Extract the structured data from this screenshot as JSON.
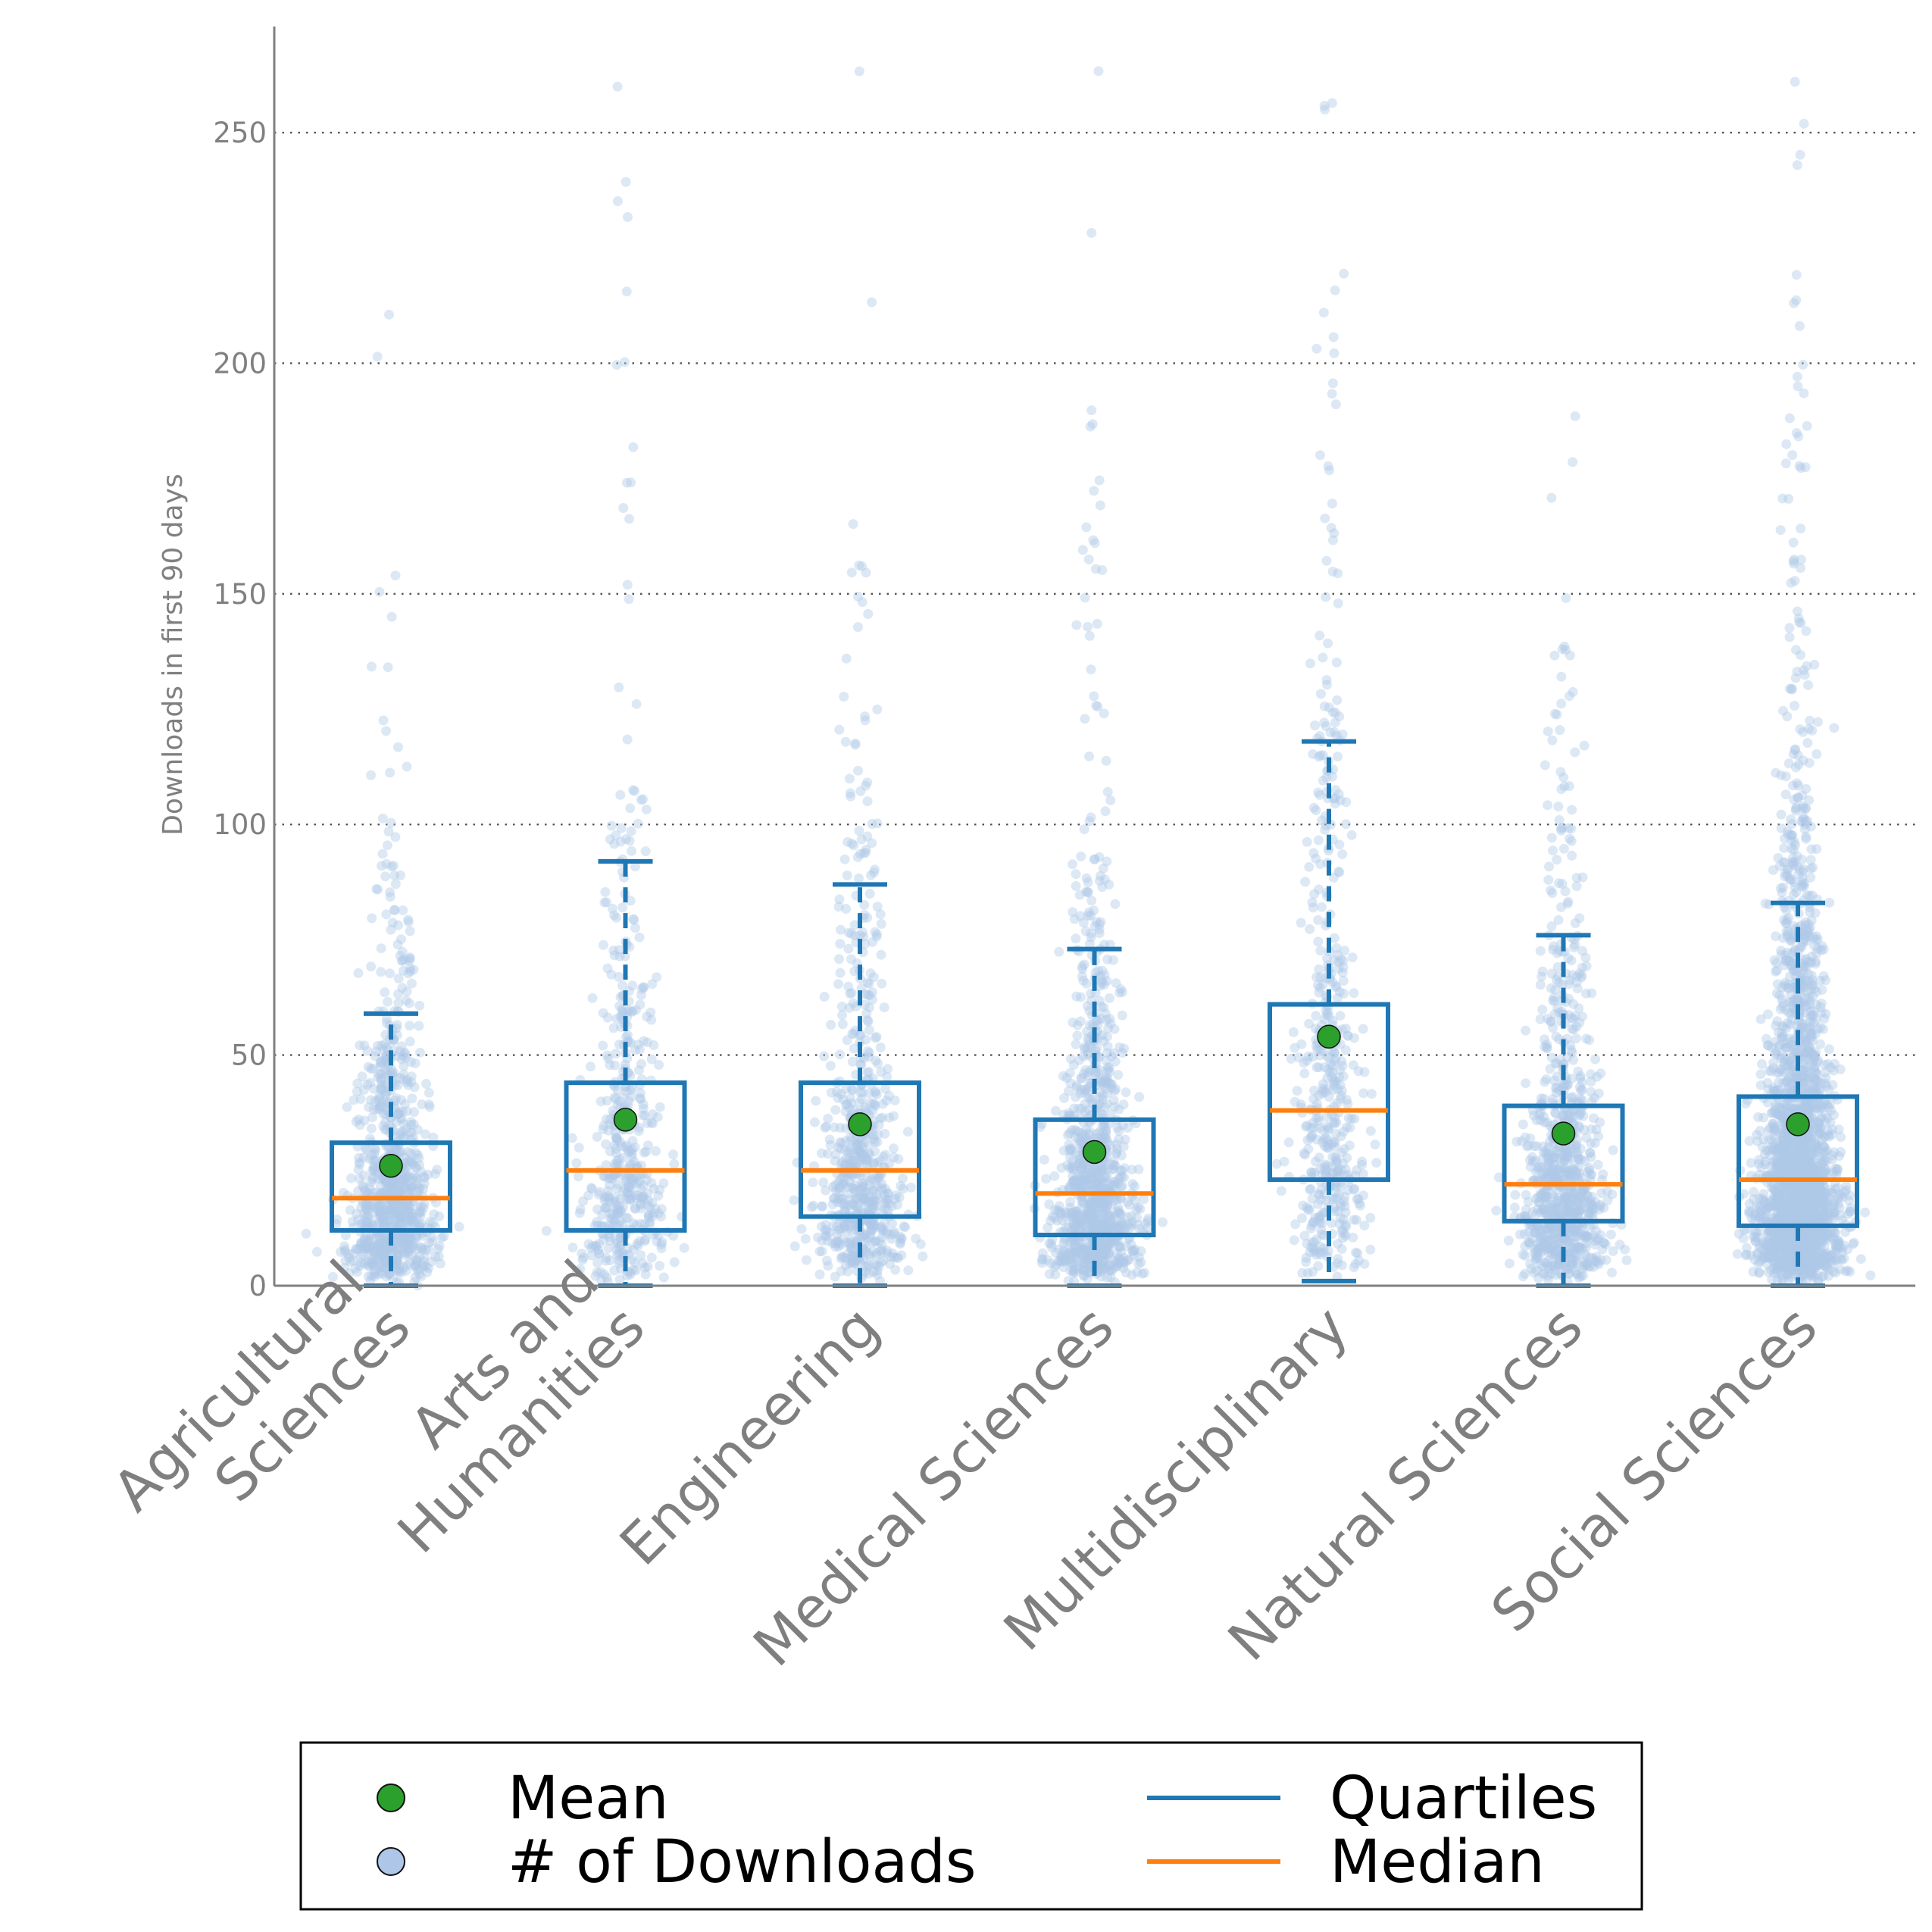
{
  "chart_data": {
    "type": "box",
    "ylabel": "Downloads in first 90 days",
    "ylim": [
      0,
      273
    ],
    "yticks": [
      0,
      50,
      100,
      150,
      200,
      250
    ],
    "grid": "horizontal dotted",
    "categories": [
      [
        "Agricultural",
        "Sciences"
      ],
      [
        "Arts and",
        "Humanities"
      ],
      [
        "Engineering"
      ],
      [
        "Medical Sciences"
      ],
      [
        "Multidisciplinary"
      ],
      [
        "Natural Sciences"
      ],
      [
        "Social Sciences"
      ]
    ],
    "boxes": [
      {
        "whisker_low": 0,
        "q1": 12,
        "median": 19,
        "q3": 31,
        "whisker_high": 59,
        "mean": 26
      },
      {
        "whisker_low": 0,
        "q1": 12,
        "median": 25,
        "q3": 44,
        "whisker_high": 92,
        "mean": 36
      },
      {
        "whisker_low": 0,
        "q1": 15,
        "median": 25,
        "q3": 44,
        "whisker_high": 87,
        "mean": 35
      },
      {
        "whisker_low": 0,
        "q1": 11,
        "median": 20,
        "q3": 36,
        "whisker_high": 73,
        "mean": 29
      },
      {
        "whisker_low": 1,
        "q1": 23,
        "median": 38,
        "q3": 61,
        "whisker_high": 118,
        "mean": 54
      },
      {
        "whisker_low": 0,
        "q1": 14,
        "median": 22,
        "q3": 39,
        "whisker_high": 76,
        "mean": 33
      },
      {
        "whisker_low": 0,
        "q1": 13,
        "median": 23,
        "q3": 41,
        "whisker_high": 83,
        "mean": 35
      }
    ],
    "point_density": [
      1.0,
      0.55,
      0.75,
      1.15,
      0.55,
      1.0,
      2.6
    ],
    "colors": {
      "points": "#aec7e8",
      "quartiles": "#1f77b4",
      "median": "#ff7f0e",
      "mean": "#2ca02c"
    },
    "legend": {
      "placement": "bottom",
      "items": [
        {
          "label": "Mean",
          "kind": "mean-marker"
        },
        {
          "label": "# of Downloads",
          "kind": "points-marker"
        },
        {
          "label": "Quartiles",
          "kind": "quartiles-line"
        },
        {
          "label": "Median",
          "kind": "median-line"
        }
      ]
    }
  }
}
